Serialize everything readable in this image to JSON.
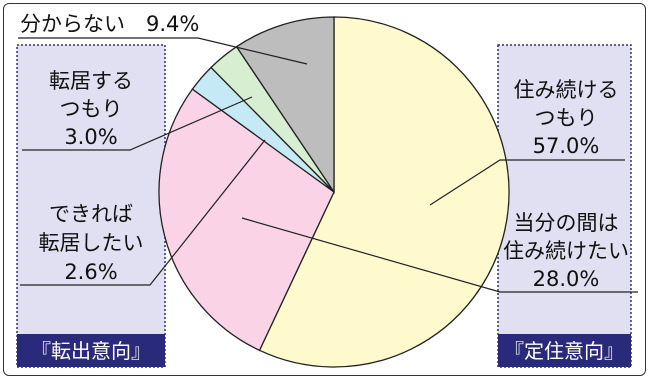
{
  "chart_data": {
    "type": "pie",
    "slices": [
      {
        "lines": [
          "住み続ける",
          "つもり",
          "57.0%"
        ],
        "value": 57.0,
        "color": "#fffacd"
      },
      {
        "lines": [
          "当分の間は",
          "住み続けたい",
          "28.0%"
        ],
        "value": 28.0,
        "color": "#fad4e6"
      },
      {
        "lines": [
          "できれば",
          "転居したい",
          "2.6%"
        ],
        "value": 2.6,
        "color": "#c6e9f6"
      },
      {
        "lines": [
          "転居する",
          "つもり",
          "3.0%"
        ],
        "value": 3.0,
        "color": "#d7efd0"
      },
      {
        "lines": [
          "分からない　9.4%"
        ],
        "value": 9.4,
        "color": "#bdbdbd"
      }
    ],
    "groups": [
      {
        "label": "『転出意向』",
        "side": "left"
      },
      {
        "label": "『定住意向』",
        "side": "right"
      }
    ],
    "colors": {
      "group_bg": "#e0e0f2",
      "group_border": "#2f2f7a",
      "tag_bg": "#2a2a7a"
    }
  }
}
